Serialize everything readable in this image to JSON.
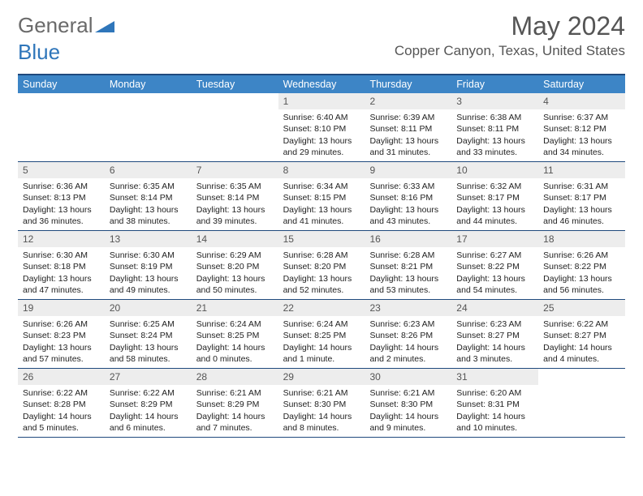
{
  "brand": {
    "text1": "General",
    "text2": "Blue",
    "color_gray": "#6a6a6a",
    "color_blue": "#2f76ba"
  },
  "title": "May 2024",
  "location": "Copper Canyon, Texas, United States",
  "header_color": "#3d85c6",
  "border_color": "#1f497d",
  "daynum_bg": "#ededed",
  "weekdays": [
    "Sunday",
    "Monday",
    "Tuesday",
    "Wednesday",
    "Thursday",
    "Friday",
    "Saturday"
  ],
  "weeks": [
    [
      {
        "n": "",
        "sr": "",
        "ss": "",
        "dl": ""
      },
      {
        "n": "",
        "sr": "",
        "ss": "",
        "dl": ""
      },
      {
        "n": "",
        "sr": "",
        "ss": "",
        "dl": ""
      },
      {
        "n": "1",
        "sr": "Sunrise: 6:40 AM",
        "ss": "Sunset: 8:10 PM",
        "dl": "Daylight: 13 hours and 29 minutes."
      },
      {
        "n": "2",
        "sr": "Sunrise: 6:39 AM",
        "ss": "Sunset: 8:11 PM",
        "dl": "Daylight: 13 hours and 31 minutes."
      },
      {
        "n": "3",
        "sr": "Sunrise: 6:38 AM",
        "ss": "Sunset: 8:11 PM",
        "dl": "Daylight: 13 hours and 33 minutes."
      },
      {
        "n": "4",
        "sr": "Sunrise: 6:37 AM",
        "ss": "Sunset: 8:12 PM",
        "dl": "Daylight: 13 hours and 34 minutes."
      }
    ],
    [
      {
        "n": "5",
        "sr": "Sunrise: 6:36 AM",
        "ss": "Sunset: 8:13 PM",
        "dl": "Daylight: 13 hours and 36 minutes."
      },
      {
        "n": "6",
        "sr": "Sunrise: 6:35 AM",
        "ss": "Sunset: 8:14 PM",
        "dl": "Daylight: 13 hours and 38 minutes."
      },
      {
        "n": "7",
        "sr": "Sunrise: 6:35 AM",
        "ss": "Sunset: 8:14 PM",
        "dl": "Daylight: 13 hours and 39 minutes."
      },
      {
        "n": "8",
        "sr": "Sunrise: 6:34 AM",
        "ss": "Sunset: 8:15 PM",
        "dl": "Daylight: 13 hours and 41 minutes."
      },
      {
        "n": "9",
        "sr": "Sunrise: 6:33 AM",
        "ss": "Sunset: 8:16 PM",
        "dl": "Daylight: 13 hours and 43 minutes."
      },
      {
        "n": "10",
        "sr": "Sunrise: 6:32 AM",
        "ss": "Sunset: 8:17 PM",
        "dl": "Daylight: 13 hours and 44 minutes."
      },
      {
        "n": "11",
        "sr": "Sunrise: 6:31 AM",
        "ss": "Sunset: 8:17 PM",
        "dl": "Daylight: 13 hours and 46 minutes."
      }
    ],
    [
      {
        "n": "12",
        "sr": "Sunrise: 6:30 AM",
        "ss": "Sunset: 8:18 PM",
        "dl": "Daylight: 13 hours and 47 minutes."
      },
      {
        "n": "13",
        "sr": "Sunrise: 6:30 AM",
        "ss": "Sunset: 8:19 PM",
        "dl": "Daylight: 13 hours and 49 minutes."
      },
      {
        "n": "14",
        "sr": "Sunrise: 6:29 AM",
        "ss": "Sunset: 8:20 PM",
        "dl": "Daylight: 13 hours and 50 minutes."
      },
      {
        "n": "15",
        "sr": "Sunrise: 6:28 AM",
        "ss": "Sunset: 8:20 PM",
        "dl": "Daylight: 13 hours and 52 minutes."
      },
      {
        "n": "16",
        "sr": "Sunrise: 6:28 AM",
        "ss": "Sunset: 8:21 PM",
        "dl": "Daylight: 13 hours and 53 minutes."
      },
      {
        "n": "17",
        "sr": "Sunrise: 6:27 AM",
        "ss": "Sunset: 8:22 PM",
        "dl": "Daylight: 13 hours and 54 minutes."
      },
      {
        "n": "18",
        "sr": "Sunrise: 6:26 AM",
        "ss": "Sunset: 8:22 PM",
        "dl": "Daylight: 13 hours and 56 minutes."
      }
    ],
    [
      {
        "n": "19",
        "sr": "Sunrise: 6:26 AM",
        "ss": "Sunset: 8:23 PM",
        "dl": "Daylight: 13 hours and 57 minutes."
      },
      {
        "n": "20",
        "sr": "Sunrise: 6:25 AM",
        "ss": "Sunset: 8:24 PM",
        "dl": "Daylight: 13 hours and 58 minutes."
      },
      {
        "n": "21",
        "sr": "Sunrise: 6:24 AM",
        "ss": "Sunset: 8:25 PM",
        "dl": "Daylight: 14 hours and 0 minutes."
      },
      {
        "n": "22",
        "sr": "Sunrise: 6:24 AM",
        "ss": "Sunset: 8:25 PM",
        "dl": "Daylight: 14 hours and 1 minute."
      },
      {
        "n": "23",
        "sr": "Sunrise: 6:23 AM",
        "ss": "Sunset: 8:26 PM",
        "dl": "Daylight: 14 hours and 2 minutes."
      },
      {
        "n": "24",
        "sr": "Sunrise: 6:23 AM",
        "ss": "Sunset: 8:27 PM",
        "dl": "Daylight: 14 hours and 3 minutes."
      },
      {
        "n": "25",
        "sr": "Sunrise: 6:22 AM",
        "ss": "Sunset: 8:27 PM",
        "dl": "Daylight: 14 hours and 4 minutes."
      }
    ],
    [
      {
        "n": "26",
        "sr": "Sunrise: 6:22 AM",
        "ss": "Sunset: 8:28 PM",
        "dl": "Daylight: 14 hours and 5 minutes."
      },
      {
        "n": "27",
        "sr": "Sunrise: 6:22 AM",
        "ss": "Sunset: 8:29 PM",
        "dl": "Daylight: 14 hours and 6 minutes."
      },
      {
        "n": "28",
        "sr": "Sunrise: 6:21 AM",
        "ss": "Sunset: 8:29 PM",
        "dl": "Daylight: 14 hours and 7 minutes."
      },
      {
        "n": "29",
        "sr": "Sunrise: 6:21 AM",
        "ss": "Sunset: 8:30 PM",
        "dl": "Daylight: 14 hours and 8 minutes."
      },
      {
        "n": "30",
        "sr": "Sunrise: 6:21 AM",
        "ss": "Sunset: 8:30 PM",
        "dl": "Daylight: 14 hours and 9 minutes."
      },
      {
        "n": "31",
        "sr": "Sunrise: 6:20 AM",
        "ss": "Sunset: 8:31 PM",
        "dl": "Daylight: 14 hours and 10 minutes."
      },
      {
        "n": "",
        "sr": "",
        "ss": "",
        "dl": ""
      }
    ]
  ]
}
